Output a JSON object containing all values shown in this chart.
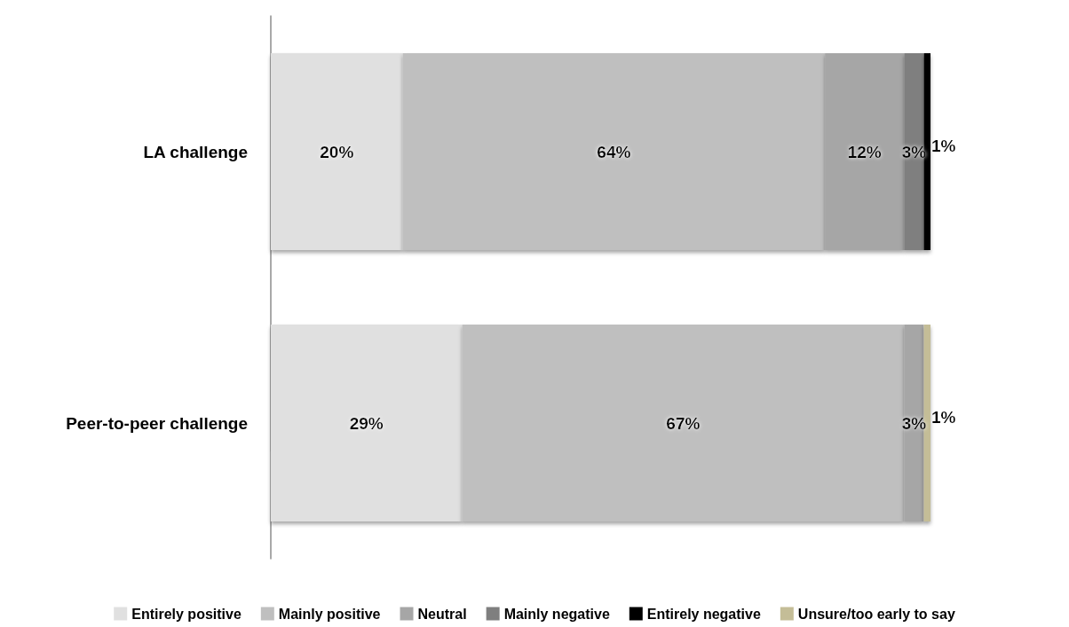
{
  "chart_data": {
    "type": "bar",
    "orientation": "horizontal",
    "stacked": true,
    "categories": [
      "LA challenge",
      "Peer-to-peer challenge"
    ],
    "series": [
      {
        "name": "Entirely positive",
        "color": "#e0e0e0",
        "values": [
          20,
          29
        ],
        "value_labels": [
          "20%",
          "29%"
        ]
      },
      {
        "name": "Mainly positive",
        "color": "#bfbfbf",
        "values": [
          64,
          67
        ],
        "value_labels": [
          "64%",
          "67%"
        ]
      },
      {
        "name": "Neutral",
        "color": "#a6a6a6",
        "values": [
          12,
          3
        ],
        "value_labels": [
          "12%",
          "3%"
        ]
      },
      {
        "name": "Mainly negative",
        "color": "#7f7f7f",
        "values": [
          3,
          null
        ],
        "value_labels": [
          "3%",
          null
        ]
      },
      {
        "name": "Entirely negative",
        "color": "#000000",
        "values": [
          1,
          null
        ],
        "value_labels": [
          "1%",
          null
        ]
      },
      {
        "name": "Unsure/too early to say",
        "color": "#c4bd97",
        "values": [
          null,
          1
        ],
        "value_labels": [
          null,
          "1%"
        ]
      }
    ],
    "legend": "bottom",
    "tick_labels": "y"
  }
}
